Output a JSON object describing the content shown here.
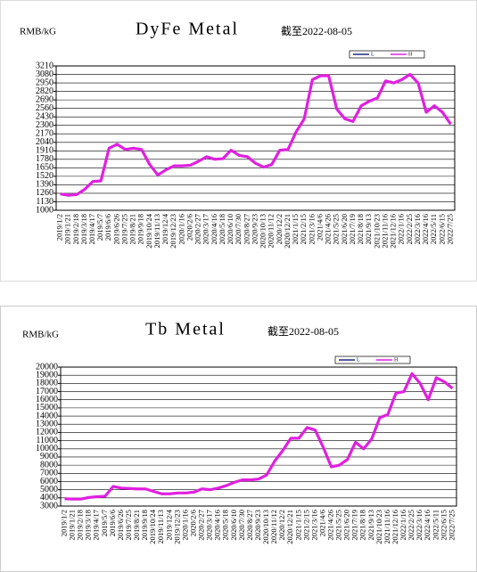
{
  "chart_data": [
    {
      "type": "line",
      "title": "DyFe Metal",
      "subtitle": "截至2022-08-05",
      "unit": "RMB/kG",
      "categories": [
        "2019/1/2",
        "2019/1/21",
        "2019/2/18",
        "2019/3/18",
        "2019/4/17",
        "2019/5/7",
        "2019/6/6",
        "2019/6/26",
        "2019/7/25",
        "2019/8/21",
        "2019/9/18",
        "2019/10/24",
        "2019/11/13",
        "2019/12/4",
        "2019/12/23",
        "2020/1/16",
        "2020/2/6",
        "2020/2/27",
        "2020/3/17",
        "2020/4/16",
        "2020/5/18",
        "2020/6/10",
        "2020/7/30",
        "2020/8/27",
        "2020/9/23",
        "2020/10/13",
        "2020/11/12",
        "2020/12/2",
        "2020/12/21",
        "2021/1/15",
        "2021/2/15",
        "2021/3/16",
        "2021/4/6",
        "2021/4/26",
        "2021/5/25",
        "2021/6/20",
        "2021/7/19",
        "2021/8/18",
        "2021/9/13",
        "2021/10/23",
        "2021/11/16",
        "2021/12/16",
        "2022/1/16",
        "2022/2/25",
        "2022/3/16",
        "2022/4/16",
        "2022/5/11",
        "2022/6/15",
        "2022/7/25"
      ],
      "series": [
        {
          "name": "L",
          "color": "#1f2a7a",
          "values": [
            1250,
            1230,
            1240,
            1320,
            1440,
            1450,
            1950,
            2010,
            1930,
            1950,
            1930,
            1700,
            1540,
            1620,
            1680,
            1680,
            1690,
            1750,
            1820,
            1780,
            1790,
            1920,
            1840,
            1820,
            1720,
            1660,
            1700,
            1920,
            1930,
            2200,
            2400,
            3000,
            3060,
            3060,
            2550,
            2400,
            2360,
            2600,
            2670,
            2720,
            2980,
            2950,
            3000,
            3080,
            2950,
            2500,
            2600,
            2500,
            2320
          ]
        },
        {
          "name": "H",
          "color": "#e020e0",
          "values": [
            1250,
            1230,
            1240,
            1320,
            1440,
            1450,
            1950,
            2010,
            1930,
            1950,
            1930,
            1700,
            1540,
            1620,
            1680,
            1680,
            1690,
            1750,
            1820,
            1780,
            1790,
            1920,
            1840,
            1820,
            1720,
            1660,
            1700,
            1920,
            1930,
            2200,
            2400,
            3000,
            3060,
            3060,
            2550,
            2400,
            2360,
            2600,
            2670,
            2720,
            2980,
            2950,
            3000,
            3080,
            2950,
            2500,
            2600,
            2500,
            2320
          ]
        }
      ],
      "ylim": [
        1000,
        3210
      ],
      "yticks": [
        1000,
        1130,
        1260,
        1390,
        1520,
        1650,
        1780,
        1910,
        2040,
        2170,
        2300,
        2430,
        2560,
        2690,
        2820,
        2950,
        3080,
        3210
      ],
      "grid": true
    },
    {
      "type": "line",
      "title": "Tb Metal",
      "subtitle": "截至2022-08-05",
      "unit": "RMB/kG",
      "categories": [
        "2019/1/2",
        "2019/1/21",
        "2019/2/18",
        "2019/3/18",
        "2019/4/17",
        "2019/5/7",
        "2019/6/6",
        "2019/6/26",
        "2019/7/25",
        "2019/8/21",
        "2019/9/18",
        "2019/10/24",
        "2019/11/13",
        "2019/12/4",
        "2019/12/23",
        "2020/1/16",
        "2020/2/6",
        "2020/2/27",
        "2020/3/17",
        "2020/4/16",
        "2020/5/18",
        "2020/6/10",
        "2020/7/30",
        "2020/8/27",
        "2020/9/23",
        "2020/10/13",
        "2020/11/12",
        "2020/12/2",
        "2020/12/21",
        "2021/1/15",
        "2021/2/15",
        "2021/3/16",
        "2021/4/6",
        "2021/4/26",
        "2021/5/25",
        "2021/6/20",
        "2021/7/19",
        "2021/8/18",
        "2021/9/13",
        "2021/10/23",
        "2021/11/16",
        "2021/12/16",
        "2022/1/16",
        "2022/2/25",
        "2022/3/16",
        "2022/4/16",
        "2022/5/11",
        "2022/6/15",
        "2022/7/25"
      ],
      "series": [
        {
          "name": "L",
          "color": "#1f2a7a",
          "values": [
            3900,
            3850,
            3850,
            4050,
            4150,
            4200,
            5400,
            5200,
            5150,
            5100,
            5100,
            4800,
            4500,
            4500,
            4600,
            4600,
            4700,
            5100,
            5000,
            5200,
            5500,
            5900,
            6200,
            6200,
            6300,
            6800,
            8500,
            9800,
            11300,
            11300,
            12600,
            12300,
            10200,
            7800,
            8000,
            8700,
            10800,
            10000,
            11200,
            13800,
            14200,
            16800,
            17000,
            19200,
            18000,
            16000,
            18700,
            18200,
            17400
          ]
        },
        {
          "name": "H",
          "color": "#e020e0",
          "values": [
            3900,
            3850,
            3850,
            4050,
            4150,
            4200,
            5400,
            5200,
            5150,
            5100,
            5100,
            4800,
            4500,
            4500,
            4600,
            4600,
            4700,
            5100,
            5000,
            5200,
            5500,
            5900,
            6200,
            6200,
            6300,
            6800,
            8500,
            9800,
            11300,
            11300,
            12600,
            12300,
            10200,
            7800,
            8000,
            8700,
            10800,
            10000,
            11200,
            13800,
            14200,
            16800,
            17000,
            19200,
            18000,
            16000,
            18700,
            18200,
            17400
          ]
        }
      ],
      "ylim": [
        3000,
        20000
      ],
      "yticks": [
        3000,
        4000,
        5000,
        6000,
        7000,
        8000,
        9000,
        10000,
        11000,
        12000,
        13000,
        14000,
        15000,
        16000,
        17000,
        18000,
        19000,
        20000
      ],
      "grid": true
    }
  ]
}
